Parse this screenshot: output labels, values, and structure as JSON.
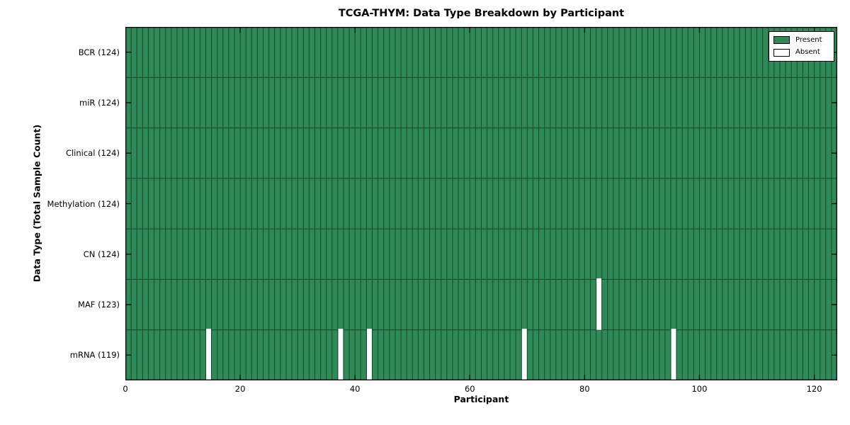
{
  "chart_data": {
    "type": "heatmap",
    "title": "TCGA-THYM: Data Type Breakdown by Participant",
    "xlabel": "Participant",
    "ylabel": "Data Type (Total Sample Count)",
    "n_participants": 124,
    "x_ticks": [
      0,
      20,
      40,
      60,
      80,
      100,
      120
    ],
    "rows": [
      {
        "label": "BCR (124)",
        "total": 124,
        "absent_participants": []
      },
      {
        "label": "miR (124)",
        "total": 124,
        "absent_participants": []
      },
      {
        "label": "Clinical (124)",
        "total": 124,
        "absent_participants": []
      },
      {
        "label": "Methylation (124)",
        "total": 124,
        "absent_participants": []
      },
      {
        "label": "CN (124)",
        "total": 124,
        "absent_participants": []
      },
      {
        "label": "MAF (123)",
        "total": 123,
        "absent_participants": [
          82
        ]
      },
      {
        "label": "mRNA (119)",
        "total": 119,
        "absent_participants": [
          14,
          37,
          42,
          69,
          95
        ]
      }
    ],
    "legend": [
      {
        "label": "Present",
        "color": "#2e8b57"
      },
      {
        "label": "Absent",
        "color": "#ffffff"
      }
    ],
    "legend_position": "upper right",
    "grid": "cell-borders",
    "colors": {
      "present": "#2e8b57",
      "absent": "#ffffff",
      "cell_edge": "#1a4a2f",
      "axis": "#000000",
      "background": "#ffffff"
    }
  }
}
